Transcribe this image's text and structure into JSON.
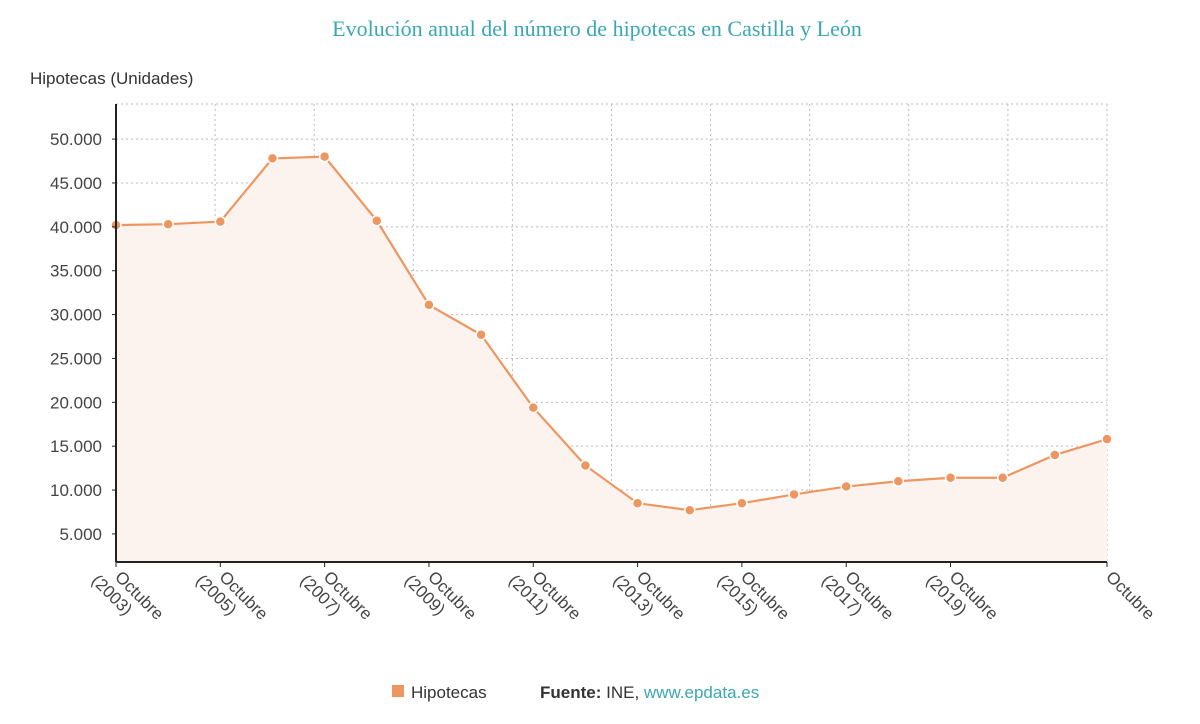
{
  "chart_data": {
    "type": "area",
    "title": "Evolución anual del número de hipotecas en Castilla y León",
    "ylabel": "Hipotecas (Unidades)",
    "xlabel": "",
    "ylim": [
      1800,
      54000
    ],
    "grid": true,
    "legend_placement": "bottom",
    "colors": {
      "series": "#ee9660",
      "fill": "#fdf3ee",
      "title": "#3aa7b5",
      "link": "#3aa7b5"
    },
    "y_ticks": [
      5000,
      10000,
      15000,
      20000,
      25000,
      30000,
      35000,
      40000,
      45000,
      50000
    ],
    "y_tick_labels": [
      "5.000",
      "10.000",
      "15.000",
      "20.000",
      "25.000",
      "30.000",
      "35.000",
      "40.000",
      "45.000",
      "50.000"
    ],
    "x": [
      "2003",
      "2004",
      "2005",
      "2006",
      "2007",
      "2008",
      "2009",
      "2010",
      "2011",
      "2012",
      "2013",
      "2014",
      "2015",
      "2016",
      "2017",
      "2018",
      "2019",
      "2020",
      "2021",
      "2022"
    ],
    "x_tick_labels": [
      {
        "x": "2003",
        "lines": [
          "Octubre",
          "(2003)"
        ]
      },
      {
        "x": "2005",
        "lines": [
          "Octubre",
          "(2005)"
        ]
      },
      {
        "x": "2007",
        "lines": [
          "Octubre",
          "(2007)"
        ]
      },
      {
        "x": "2009",
        "lines": [
          "Octubre",
          "(2009)"
        ]
      },
      {
        "x": "2011",
        "lines": [
          "Octubre",
          "(2011)"
        ]
      },
      {
        "x": "2013",
        "lines": [
          "Octubre",
          "(2013)"
        ]
      },
      {
        "x": "2015",
        "lines": [
          "Octubre",
          "(2015)"
        ]
      },
      {
        "x": "2017",
        "lines": [
          "Octubre",
          "(2017)"
        ]
      },
      {
        "x": "2019",
        "lines": [
          "Octubre",
          "(2019)"
        ]
      },
      {
        "x": "2022",
        "lines": [
          "Octubre"
        ]
      }
    ],
    "series": [
      {
        "name": "Hipotecas",
        "values": [
          40200,
          40300,
          40600,
          47800,
          48000,
          40700,
          31100,
          27700,
          19400,
          12800,
          8500,
          7700,
          8500,
          9500,
          10400,
          11000,
          11400,
          11400,
          14000,
          15800
        ]
      }
    ]
  },
  "legend": {
    "series_label": "Hipotecas"
  },
  "source": {
    "label": "Fuente:",
    "text": " INE, ",
    "link": "www.epdata.es"
  }
}
